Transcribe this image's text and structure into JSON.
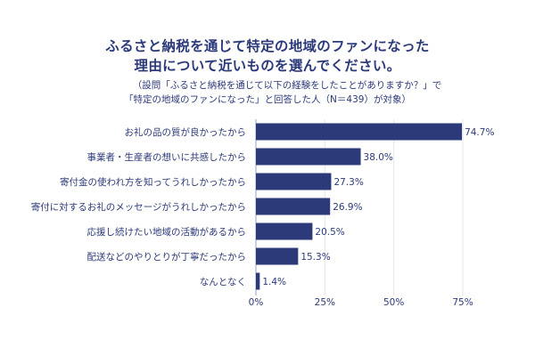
{
  "chart_data": {
    "type": "bar",
    "orientation": "horizontal",
    "title_lines": [
      "ふるさと納税を通じて特定の地域のファンになった",
      "理由について近いものを選んでください。"
    ],
    "notes": [
      "（設問「ふるさと納税を通じて以下の経験をしたことがありますか？」で",
      "「特定の地域のファンになった」と回答した人（N＝439）が対象）"
    ],
    "categories": [
      "お礼の品の質が良かったから",
      "事業者・生産者の想いに共感したから",
      "寄付金の使われ方を知ってうれしかったから",
      "寄付に対するお礼のメッセージがうれしかったから",
      "応援し続けたい地域の活動があるから",
      "配送などのやりとりが丁寧だったから",
      "なんとなく"
    ],
    "values": [
      74.7,
      38.0,
      27.3,
      26.9,
      20.5,
      15.3,
      1.4
    ],
    "value_labels": [
      "74.7%",
      "38.0%",
      "27.3%",
      "26.9%",
      "20.5%",
      "15.3%",
      "1.4%"
    ],
    "xlim": [
      0,
      75
    ],
    "xticks": [
      0,
      25,
      50,
      75
    ],
    "xtick_labels": [
      "0%",
      "25%",
      "50%",
      "75%"
    ],
    "grid": true,
    "bar_color": "#2c3a7a",
    "text_color": "#2c3a7a"
  }
}
